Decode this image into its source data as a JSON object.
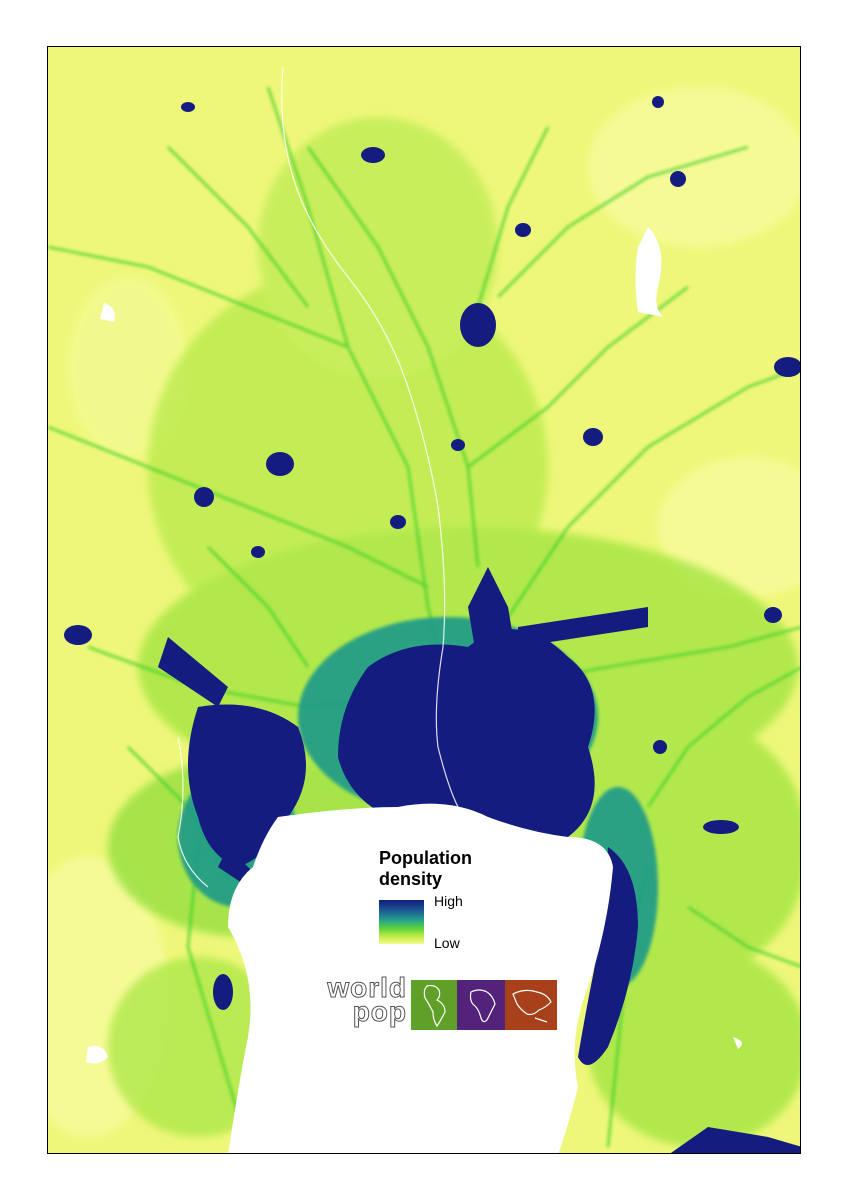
{
  "legend": {
    "title_line1": "Population",
    "title_line2": "density",
    "high_label": "High",
    "low_label": "Low",
    "colors": {
      "high": "#0f1f7a",
      "mid": "#23a08c",
      "low": "#f4fb8c"
    }
  },
  "logo": {
    "text_line1": "world",
    "text_line2": "pop",
    "tiles": [
      {
        "name": "americas",
        "color": "#5fa128"
      },
      {
        "name": "africa",
        "color": "#53227a"
      },
      {
        "name": "asia",
        "color": "#a8401a"
      }
    ]
  },
  "map_colors": {
    "background": "#eef77a",
    "green": "#7fdc3a",
    "bright_green": "#3fcf2a",
    "teal": "#1f9a8a",
    "dense": "#141c80",
    "water": "#ffffff"
  }
}
